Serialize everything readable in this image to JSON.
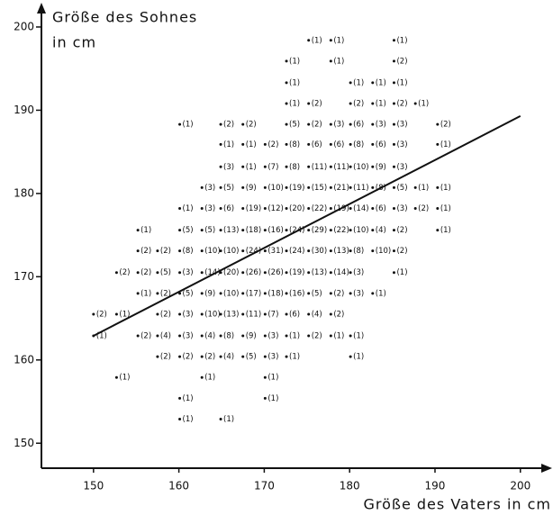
{
  "chart_data": {
    "type": "scatter",
    "y_label_lines": [
      "Größe des Sohnes",
      "in cm"
    ],
    "x_label": "Größe des Vaters in cm",
    "xlim": [
      143.9,
      203.4
    ],
    "ylim": [
      147.0,
      202.7
    ],
    "xticks": [
      150,
      160,
      170,
      180,
      190,
      200
    ],
    "yticks": [
      150,
      160,
      170,
      180,
      190,
      200
    ],
    "color": "#111111",
    "regression_line": {
      "x": [
        150,
        200
      ],
      "values": [
        162.9,
        189.3
      ]
    },
    "points": [
      {
        "x": 175.2,
        "y": 198.4,
        "count": 1,
        "label": "(1)"
      },
      {
        "x": 177.8,
        "y": 198.4,
        "count": 1,
        "label": "(1)"
      },
      {
        "x": 185.2,
        "y": 198.4,
        "count": 1,
        "label": "(1)"
      },
      {
        "x": 172.6,
        "y": 195.9,
        "count": 1,
        "label": "(1)"
      },
      {
        "x": 177.8,
        "y": 195.9,
        "count": 1,
        "label": "(1)"
      },
      {
        "x": 185.2,
        "y": 195.9,
        "count": 2,
        "label": "(2)"
      },
      {
        "x": 172.6,
        "y": 193.3,
        "count": 1,
        "label": "(1)"
      },
      {
        "x": 180.1,
        "y": 193.3,
        "count": 1,
        "label": "(1)"
      },
      {
        "x": 182.7,
        "y": 193.3,
        "count": 1,
        "label": "(1)"
      },
      {
        "x": 185.2,
        "y": 193.3,
        "count": 1,
        "label": "(1)"
      },
      {
        "x": 172.6,
        "y": 190.8,
        "count": 1,
        "label": "(1)"
      },
      {
        "x": 175.2,
        "y": 190.8,
        "count": 2,
        "label": "(2)"
      },
      {
        "x": 180.1,
        "y": 190.8,
        "count": 2,
        "label": "(2)"
      },
      {
        "x": 182.7,
        "y": 190.8,
        "count": 1,
        "label": "(1)"
      },
      {
        "x": 185.2,
        "y": 190.8,
        "count": 2,
        "label": "(2)"
      },
      {
        "x": 187.7,
        "y": 190.8,
        "count": 1,
        "label": "(1)"
      },
      {
        "x": 160.1,
        "y": 188.3,
        "count": 1,
        "label": "(1)"
      },
      {
        "x": 164.9,
        "y": 188.3,
        "count": 2,
        "label": "(2)"
      },
      {
        "x": 167.5,
        "y": 188.3,
        "count": 2,
        "label": "(2)"
      },
      {
        "x": 172.6,
        "y": 188.3,
        "count": 5,
        "label": "(5)"
      },
      {
        "x": 175.2,
        "y": 188.3,
        "count": 2,
        "label": "(2)"
      },
      {
        "x": 177.8,
        "y": 188.3,
        "count": 3,
        "label": "(3)"
      },
      {
        "x": 180.1,
        "y": 188.3,
        "count": 6,
        "label": "(6)"
      },
      {
        "x": 182.7,
        "y": 188.3,
        "count": 3,
        "label": "(3)"
      },
      {
        "x": 185.2,
        "y": 188.3,
        "count": 3,
        "label": "(3)"
      },
      {
        "x": 190.3,
        "y": 188.3,
        "count": 2,
        "label": "(2)"
      },
      {
        "x": 164.9,
        "y": 185.9,
        "count": 1,
        "label": "(1)"
      },
      {
        "x": 167.5,
        "y": 185.9,
        "count": 1,
        "label": "(1)"
      },
      {
        "x": 170.1,
        "y": 185.9,
        "count": 2,
        "label": "(2)"
      },
      {
        "x": 172.6,
        "y": 185.9,
        "count": 8,
        "label": "(8)"
      },
      {
        "x": 175.2,
        "y": 185.9,
        "count": 6,
        "label": "(6)"
      },
      {
        "x": 177.8,
        "y": 185.9,
        "count": 6,
        "label": "(6)"
      },
      {
        "x": 180.1,
        "y": 185.9,
        "count": 8,
        "label": "(8)"
      },
      {
        "x": 182.7,
        "y": 185.9,
        "count": 6,
        "label": "(6)"
      },
      {
        "x": 185.2,
        "y": 185.9,
        "count": 3,
        "label": "(3)"
      },
      {
        "x": 190.3,
        "y": 185.9,
        "count": 1,
        "label": "(1)"
      },
      {
        "x": 164.9,
        "y": 183.2,
        "count": 3,
        "label": "(3)"
      },
      {
        "x": 167.5,
        "y": 183.2,
        "count": 1,
        "label": "(1)"
      },
      {
        "x": 170.1,
        "y": 183.2,
        "count": 7,
        "label": "(7)"
      },
      {
        "x": 172.6,
        "y": 183.2,
        "count": 8,
        "label": "(8)"
      },
      {
        "x": 175.2,
        "y": 183.2,
        "count": 11,
        "label": "(11)"
      },
      {
        "x": 177.8,
        "y": 183.2,
        "count": 11,
        "label": "(11)"
      },
      {
        "x": 180.1,
        "y": 183.2,
        "count": 10,
        "label": "(10)"
      },
      {
        "x": 182.7,
        "y": 183.2,
        "count": 9,
        "label": "(9)"
      },
      {
        "x": 185.2,
        "y": 183.2,
        "count": 3,
        "label": "(3)"
      },
      {
        "x": 162.7,
        "y": 180.7,
        "count": 3,
        "label": "(3)"
      },
      {
        "x": 164.9,
        "y": 180.7,
        "count": 5,
        "label": "(5)"
      },
      {
        "x": 167.5,
        "y": 180.7,
        "count": 9,
        "label": "(9)"
      },
      {
        "x": 170.1,
        "y": 180.7,
        "count": 10,
        "label": "(10)"
      },
      {
        "x": 172.6,
        "y": 180.7,
        "count": 19,
        "label": "(19)"
      },
      {
        "x": 175.2,
        "y": 180.7,
        "count": 15,
        "label": "(15)"
      },
      {
        "x": 177.8,
        "y": 180.7,
        "count": 21,
        "label": "(21)"
      },
      {
        "x": 180.1,
        "y": 180.7,
        "count": 11,
        "label": "(11)"
      },
      {
        "x": 182.7,
        "y": 180.7,
        "count": 8,
        "label": "(8)"
      },
      {
        "x": 185.2,
        "y": 180.7,
        "count": 5,
        "label": "(5)"
      },
      {
        "x": 187.7,
        "y": 180.7,
        "count": 1,
        "label": "(1)"
      },
      {
        "x": 190.3,
        "y": 180.7,
        "count": 1,
        "label": "(1)"
      },
      {
        "x": 160.1,
        "y": 178.2,
        "count": 1,
        "label": "(1)"
      },
      {
        "x": 162.7,
        "y": 178.2,
        "count": 3,
        "label": "(3)"
      },
      {
        "x": 164.9,
        "y": 178.2,
        "count": 6,
        "label": "(6)"
      },
      {
        "x": 167.5,
        "y": 178.2,
        "count": 19,
        "label": "(19)"
      },
      {
        "x": 170.1,
        "y": 178.2,
        "count": 12,
        "label": "(12)"
      },
      {
        "x": 172.6,
        "y": 178.2,
        "count": 20,
        "label": "(20)"
      },
      {
        "x": 175.2,
        "y": 178.2,
        "count": 22,
        "label": "(22)"
      },
      {
        "x": 177.8,
        "y": 178.2,
        "count": 19,
        "label": "(19)"
      },
      {
        "x": 180.1,
        "y": 178.2,
        "count": 14,
        "label": "(14)"
      },
      {
        "x": 182.7,
        "y": 178.2,
        "count": 6,
        "label": "(6)"
      },
      {
        "x": 185.2,
        "y": 178.2,
        "count": 3,
        "label": "(3)"
      },
      {
        "x": 187.7,
        "y": 178.2,
        "count": 2,
        "label": "(2)"
      },
      {
        "x": 190.3,
        "y": 178.2,
        "count": 1,
        "label": "(1)"
      },
      {
        "x": 155.2,
        "y": 175.6,
        "count": 1,
        "label": "(1)"
      },
      {
        "x": 160.1,
        "y": 175.6,
        "count": 5,
        "label": "(5)"
      },
      {
        "x": 162.7,
        "y": 175.6,
        "count": 5,
        "label": "(5)"
      },
      {
        "x": 164.9,
        "y": 175.6,
        "count": 13,
        "label": "(13)"
      },
      {
        "x": 167.5,
        "y": 175.6,
        "count": 18,
        "label": "(18)"
      },
      {
        "x": 170.1,
        "y": 175.6,
        "count": 16,
        "label": "(16)"
      },
      {
        "x": 172.6,
        "y": 175.6,
        "count": 24,
        "label": "(24)"
      },
      {
        "x": 175.2,
        "y": 175.6,
        "count": 29,
        "label": "(29)"
      },
      {
        "x": 177.8,
        "y": 175.6,
        "count": 22,
        "label": "(22)"
      },
      {
        "x": 180.1,
        "y": 175.6,
        "count": 10,
        "label": "(10)"
      },
      {
        "x": 182.7,
        "y": 175.6,
        "count": 4,
        "label": "(4)"
      },
      {
        "x": 185.2,
        "y": 175.6,
        "count": 2,
        "label": "(2)"
      },
      {
        "x": 190.3,
        "y": 175.6,
        "count": 1,
        "label": "(1)"
      },
      {
        "x": 155.2,
        "y": 173.1,
        "count": 2,
        "label": "(2)"
      },
      {
        "x": 157.5,
        "y": 173.1,
        "count": 2,
        "label": "(2)"
      },
      {
        "x": 160.1,
        "y": 173.1,
        "count": 8,
        "label": "(8)"
      },
      {
        "x": 162.7,
        "y": 173.1,
        "count": 10,
        "label": "(10)"
      },
      {
        "x": 164.9,
        "y": 173.1,
        "count": 10,
        "label": "(10)"
      },
      {
        "x": 167.5,
        "y": 173.1,
        "count": 24,
        "label": "(24)"
      },
      {
        "x": 170.1,
        "y": 173.1,
        "count": 31,
        "label": "(31)"
      },
      {
        "x": 172.6,
        "y": 173.1,
        "count": 24,
        "label": "(24)"
      },
      {
        "x": 175.2,
        "y": 173.1,
        "count": 30,
        "label": "(30)"
      },
      {
        "x": 177.8,
        "y": 173.1,
        "count": 13,
        "label": "(13)"
      },
      {
        "x": 180.1,
        "y": 173.1,
        "count": 8,
        "label": "(8)"
      },
      {
        "x": 182.7,
        "y": 173.1,
        "count": 10,
        "label": "(10)"
      },
      {
        "x": 185.2,
        "y": 173.1,
        "count": 2,
        "label": "(2)"
      },
      {
        "x": 152.7,
        "y": 170.5,
        "count": 2,
        "label": "(2)"
      },
      {
        "x": 155.2,
        "y": 170.5,
        "count": 2,
        "label": "(2)"
      },
      {
        "x": 157.5,
        "y": 170.5,
        "count": 5,
        "label": "(5)"
      },
      {
        "x": 160.1,
        "y": 170.5,
        "count": 3,
        "label": "(3)"
      },
      {
        "x": 162.7,
        "y": 170.5,
        "count": 14,
        "label": "(14)"
      },
      {
        "x": 164.9,
        "y": 170.5,
        "count": 20,
        "label": "(20)"
      },
      {
        "x": 167.5,
        "y": 170.5,
        "count": 26,
        "label": "(26)"
      },
      {
        "x": 170.1,
        "y": 170.5,
        "count": 26,
        "label": "(26)"
      },
      {
        "x": 172.6,
        "y": 170.5,
        "count": 19,
        "label": "(19)"
      },
      {
        "x": 175.2,
        "y": 170.5,
        "count": 13,
        "label": "(13)"
      },
      {
        "x": 177.8,
        "y": 170.5,
        "count": 14,
        "label": "(14)"
      },
      {
        "x": 180.1,
        "y": 170.5,
        "count": 3,
        "label": "(3)"
      },
      {
        "x": 185.2,
        "y": 170.5,
        "count": 1,
        "label": "(1)"
      },
      {
        "x": 155.2,
        "y": 168.0,
        "count": 1,
        "label": "(1)"
      },
      {
        "x": 157.5,
        "y": 168.0,
        "count": 2,
        "label": "(2)"
      },
      {
        "x": 160.1,
        "y": 168.0,
        "count": 5,
        "label": "(5)"
      },
      {
        "x": 162.7,
        "y": 168.0,
        "count": 9,
        "label": "(9)"
      },
      {
        "x": 164.9,
        "y": 168.0,
        "count": 10,
        "label": "(10)"
      },
      {
        "x": 167.5,
        "y": 168.0,
        "count": 17,
        "label": "(17)"
      },
      {
        "x": 170.1,
        "y": 168.0,
        "count": 18,
        "label": "(18)"
      },
      {
        "x": 172.6,
        "y": 168.0,
        "count": 16,
        "label": "(16)"
      },
      {
        "x": 175.2,
        "y": 168.0,
        "count": 5,
        "label": "(5)"
      },
      {
        "x": 177.8,
        "y": 168.0,
        "count": 2,
        "label": "(2)"
      },
      {
        "x": 180.1,
        "y": 168.0,
        "count": 3,
        "label": "(3)"
      },
      {
        "x": 182.7,
        "y": 168.0,
        "count": 1,
        "label": "(1)"
      },
      {
        "x": 150.0,
        "y": 165.5,
        "count": 2,
        "label": "(2)"
      },
      {
        "x": 152.7,
        "y": 165.5,
        "count": 1,
        "label": "(1)"
      },
      {
        "x": 157.5,
        "y": 165.5,
        "count": 2,
        "label": "(2)"
      },
      {
        "x": 160.1,
        "y": 165.5,
        "count": 3,
        "label": "(3)"
      },
      {
        "x": 162.7,
        "y": 165.5,
        "count": 10,
        "label": "(10)"
      },
      {
        "x": 164.9,
        "y": 165.5,
        "count": 13,
        "label": "(13)"
      },
      {
        "x": 167.5,
        "y": 165.5,
        "count": 11,
        "label": "(11)"
      },
      {
        "x": 170.1,
        "y": 165.5,
        "count": 7,
        "label": "(7)"
      },
      {
        "x": 172.6,
        "y": 165.5,
        "count": 6,
        "label": "(6)"
      },
      {
        "x": 175.2,
        "y": 165.5,
        "count": 4,
        "label": "(4)"
      },
      {
        "x": 177.8,
        "y": 165.5,
        "count": 2,
        "label": "(2)"
      },
      {
        "x": 150.0,
        "y": 162.9,
        "count": 1,
        "label": "(1)"
      },
      {
        "x": 155.2,
        "y": 162.9,
        "count": 2,
        "label": "(2)"
      },
      {
        "x": 157.5,
        "y": 162.9,
        "count": 4,
        "label": "(4)"
      },
      {
        "x": 160.1,
        "y": 162.9,
        "count": 3,
        "label": "(3)"
      },
      {
        "x": 162.7,
        "y": 162.9,
        "count": 4,
        "label": "(4)"
      },
      {
        "x": 164.9,
        "y": 162.9,
        "count": 8,
        "label": "(8)"
      },
      {
        "x": 167.5,
        "y": 162.9,
        "count": 9,
        "label": "(9)"
      },
      {
        "x": 170.1,
        "y": 162.9,
        "count": 3,
        "label": "(3)"
      },
      {
        "x": 172.6,
        "y": 162.9,
        "count": 1,
        "label": "(1)"
      },
      {
        "x": 175.2,
        "y": 162.9,
        "count": 2,
        "label": "(2)"
      },
      {
        "x": 177.8,
        "y": 162.9,
        "count": 1,
        "label": "(1)"
      },
      {
        "x": 180.1,
        "y": 162.9,
        "count": 1,
        "label": "(1)"
      },
      {
        "x": 157.5,
        "y": 160.4,
        "count": 2,
        "label": "(2)"
      },
      {
        "x": 160.1,
        "y": 160.4,
        "count": 2,
        "label": "(2)"
      },
      {
        "x": 162.7,
        "y": 160.4,
        "count": 2,
        "label": "(2)"
      },
      {
        "x": 164.9,
        "y": 160.4,
        "count": 4,
        "label": "(4)"
      },
      {
        "x": 167.5,
        "y": 160.4,
        "count": 5,
        "label": "(5)"
      },
      {
        "x": 170.1,
        "y": 160.4,
        "count": 3,
        "label": "(3)"
      },
      {
        "x": 172.6,
        "y": 160.4,
        "count": 1,
        "label": "(1)"
      },
      {
        "x": 180.1,
        "y": 160.4,
        "count": 1,
        "label": "(1)"
      },
      {
        "x": 152.7,
        "y": 157.9,
        "count": 1,
        "label": "(1)"
      },
      {
        "x": 162.7,
        "y": 157.9,
        "count": 1,
        "label": "(1)"
      },
      {
        "x": 170.1,
        "y": 157.9,
        "count": 1,
        "label": "(1)"
      },
      {
        "x": 160.1,
        "y": 155.4,
        "count": 1,
        "label": "(1)"
      },
      {
        "x": 170.1,
        "y": 155.4,
        "count": 1,
        "label": "(1)"
      },
      {
        "x": 160.1,
        "y": 152.9,
        "count": 1,
        "label": "(1)"
      },
      {
        "x": 164.9,
        "y": 152.9,
        "count": 1,
        "label": "(1)"
      }
    ]
  }
}
